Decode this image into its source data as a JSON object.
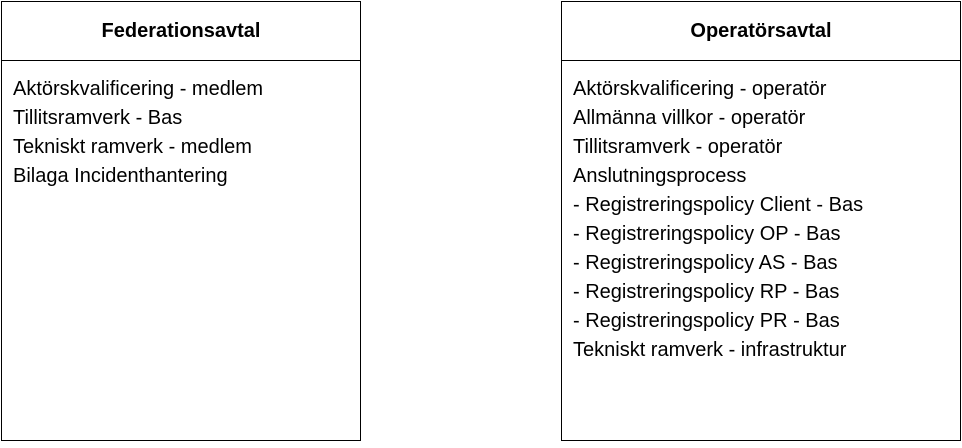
{
  "federation": {
    "title": "Federationsavtal",
    "items": [
      "Aktörskvalificering - medlem",
      "Tillitsramverk - Bas",
      "Tekniskt ramverk - medlem",
      "Bilaga Incidenthantering"
    ]
  },
  "operator": {
    "title": "Operatörsavtal",
    "items": [
      "Aktörskvalificering - operatör",
      "Allmänna villkor - operatör",
      "Tillitsramverk - operatör",
      "Anslutningsprocess",
      "- Registreringspolicy Client - Bas",
      "- Registreringspolicy OP - Bas",
      "- Registreringspolicy AS - Bas",
      "- Registreringspolicy RP - Bas",
      "- Registreringspolicy PR - Bas",
      "Tekniskt ramverk - infrastruktur"
    ]
  }
}
